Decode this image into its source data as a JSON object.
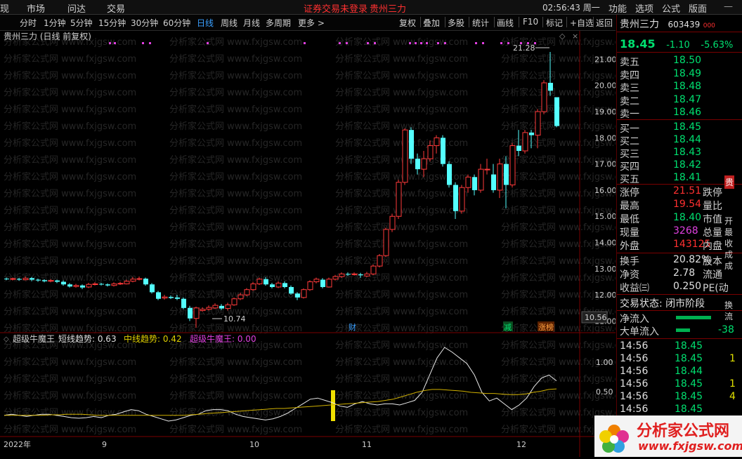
{
  "topbar": {
    "items": [
      "现",
      "市场",
      "问达",
      "交易"
    ],
    "notice": "证券交易未登录",
    "stock_name": "贵州三力",
    "clock": "02:56:43 周一",
    "right_menu": [
      "功能",
      "选项",
      "公式",
      "版面"
    ]
  },
  "toolbar": {
    "periods": [
      "分时",
      "1分钟",
      "5分钟",
      "15分钟",
      "30分钟",
      "60分钟",
      "日线",
      "周线",
      "月线",
      "多周期",
      "更多 >"
    ],
    "active_period": "日线",
    "tools": [
      "复权",
      "叠加",
      "多股",
      "统计",
      "画线",
      "F10",
      "标记",
      "+自选",
      "返回"
    ]
  },
  "main_chart": {
    "title": "贵州三力 (日线 前复权)",
    "y_ticks": [
      "21.00",
      "20.00",
      "19.00",
      "18.00",
      "17.00",
      "16.00",
      "15.00",
      "14.00",
      "13.00",
      "12.00",
      "11.00"
    ],
    "high_label": "21.28",
    "low_label": "10.74",
    "current_price_tag": "10.56",
    "markers": [
      "财",
      "减",
      "涨榜"
    ]
  },
  "indicator": {
    "name": "超级牛魔王",
    "short_label": "短线趋势: 0.63",
    "mid_label": "中线趋势: 0.42",
    "main_label": "超级牛魔王: 0.00",
    "y_ticks": [
      "1.00",
      "0.50"
    ]
  },
  "x_axis": {
    "labels": [
      "2022年",
      "9",
      "10",
      "11",
      "12"
    ]
  },
  "watermark": "分析家公式网 www.fxjgsw.com",
  "quote": {
    "name": "贵州三力",
    "code": "603439",
    "price": "18.45",
    "change": "-1.10",
    "pct": "-5.63%",
    "asks": [
      {
        "label": "卖五",
        "price": "18.50"
      },
      {
        "label": "卖四",
        "price": "18.49"
      },
      {
        "label": "卖三",
        "price": "18.48"
      },
      {
        "label": "卖二",
        "price": "18.47"
      },
      {
        "label": "卖一",
        "price": "18.46"
      }
    ],
    "bids": [
      {
        "label": "买一",
        "price": "18.45"
      },
      {
        "label": "买二",
        "price": "18.44"
      },
      {
        "label": "买三",
        "price": "18.43"
      },
      {
        "label": "买四",
        "price": "18.42"
      },
      {
        "label": "买五",
        "price": "18.41"
      }
    ],
    "stats": [
      {
        "label": "涨停",
        "value": "21.51",
        "label2": "跌停"
      },
      {
        "label": "最高",
        "value": "19.54",
        "label2": "量比"
      },
      {
        "label": "最低",
        "value": "18.40",
        "label2": "市值"
      },
      {
        "label": "现量",
        "value": "3268",
        "label2": "总量"
      },
      {
        "label": "外盘",
        "value": "143125",
        "label2": "内盘"
      }
    ],
    "fin": [
      {
        "label": "换手",
        "value": "20.82%",
        "label2": "股本"
      },
      {
        "label": "净资",
        "value": "2.78",
        "label2": "流通"
      },
      {
        "label": "收益㈢",
        "value": "0.250",
        "label2": "PE(动"
      }
    ],
    "trade_state": "交易状态: 闭市阶段",
    "flows": [
      {
        "label": "净流入",
        "value": ""
      },
      {
        "label": "大单流入",
        "value": "-38"
      }
    ],
    "ticks": [
      {
        "time": "14:56",
        "price": "18.45",
        "vol": ""
      },
      {
        "time": "14:56",
        "price": "18.45",
        "vol": "1"
      },
      {
        "time": "14:56",
        "price": "18.44",
        "vol": ""
      },
      {
        "time": "14:56",
        "price": "18.45",
        "vol": "1"
      },
      {
        "time": "14:56",
        "price": "18.45",
        "vol": "4"
      },
      {
        "time": "14:56",
        "price": "18.45",
        "vol": ""
      }
    ],
    "side_tabs": [
      "贵",
      "开",
      "最",
      "收",
      "成",
      "成",
      "换",
      "流"
    ]
  },
  "logo": {
    "text": "分析家公式网",
    "url": "www.fxjgsw.com"
  }
}
